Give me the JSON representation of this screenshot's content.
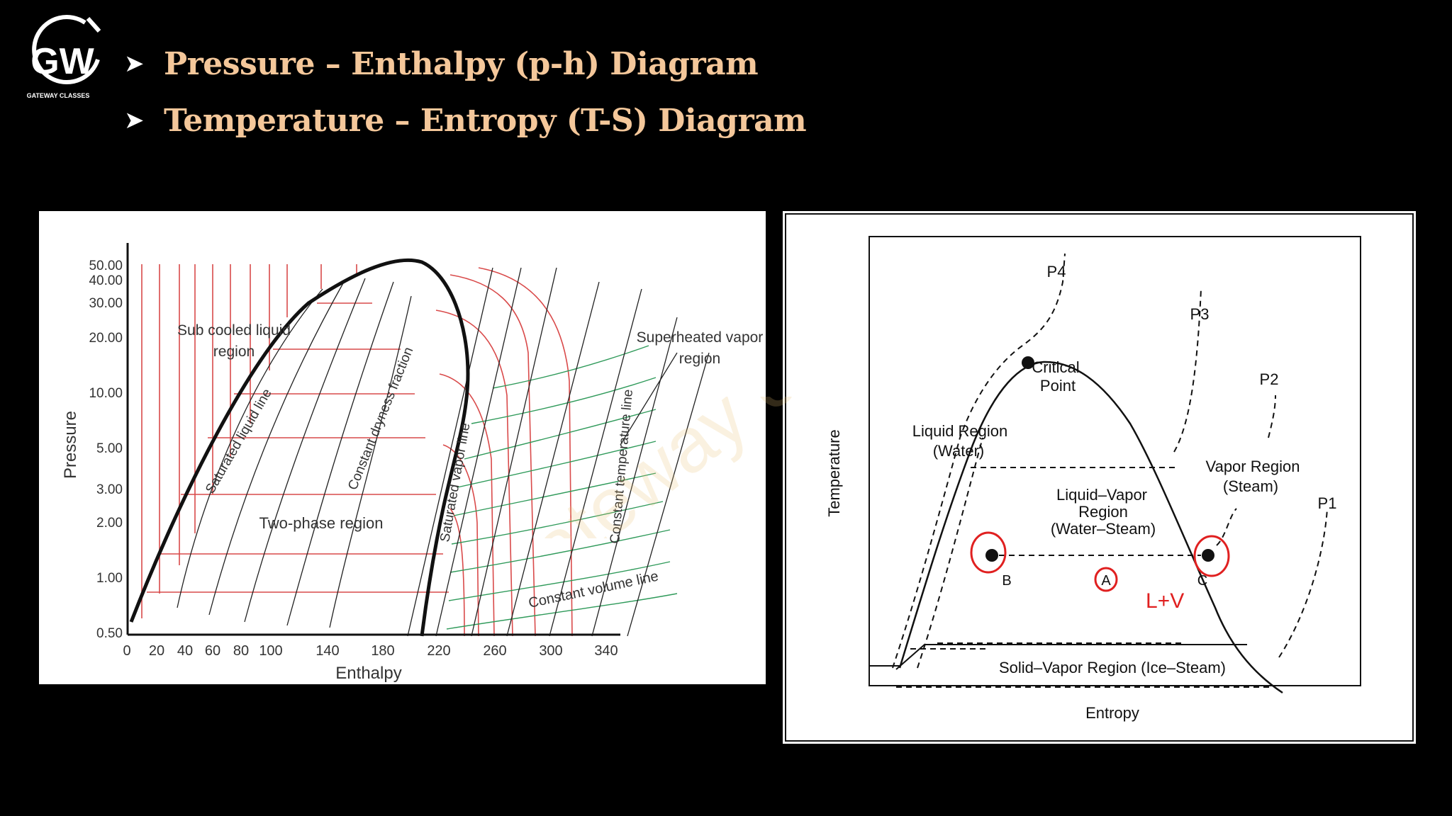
{
  "header": {
    "logo_text": "GW",
    "logo_subtext": "GATEWAY CLASSES",
    "bullets": [
      "Pressure – Enthalpy (p-h) Diagram",
      "Temperature – Entropy (T-S) Diagram"
    ]
  },
  "watermark": "Gateway classes",
  "ph_diagram": {
    "ylabel": "Pressure",
    "xlabel": "Enthalpy",
    "y_ticks": [
      "50.00",
      "40.00",
      "30.00",
      "20.00",
      "10.00",
      "5.00",
      "3.00",
      "2.00",
      "1.00",
      "0.50"
    ],
    "x_ticks": [
      "0",
      "20",
      "40",
      "60",
      "80",
      "100",
      "140",
      "180",
      "220",
      "260",
      "300",
      "340"
    ],
    "labels": {
      "subcooled": [
        "Sub cooled liquid",
        "region"
      ],
      "superheated": [
        "Superheated vapor",
        "region"
      ],
      "two_phase": "Two-phase region",
      "sat_liquid": "Saturated liquid line",
      "sat_vapor": "Saturated vapor line",
      "dryness": "Constant dryness fraction",
      "const_temp": "Constant temperature line",
      "const_vol": "Constant volume line"
    },
    "colors": {
      "isotherm": "#d94a4a",
      "isochor": "#2f9a5a",
      "dome": "#111111"
    }
  },
  "ts_diagram": {
    "ylabel": "Temperature",
    "xlabel": "Entropy",
    "pressure_labels": [
      "P4",
      "P3",
      "P2",
      "P1"
    ],
    "critical_point": [
      "Critical",
      "Point"
    ],
    "liquid_region": [
      "Liquid  Region",
      "(Water)"
    ],
    "vapor_region": [
      "Vapor  Region",
      "(Steam)"
    ],
    "mixture_region": [
      "Liquid–Vapor",
      "Region",
      "(Water–Steam)"
    ],
    "solid_vapor": "Solid–Vapor Region (Ice–Steam)",
    "points": [
      "B",
      "A",
      "C"
    ],
    "annotation": "L+V",
    "annotation_color": "#e02020"
  }
}
